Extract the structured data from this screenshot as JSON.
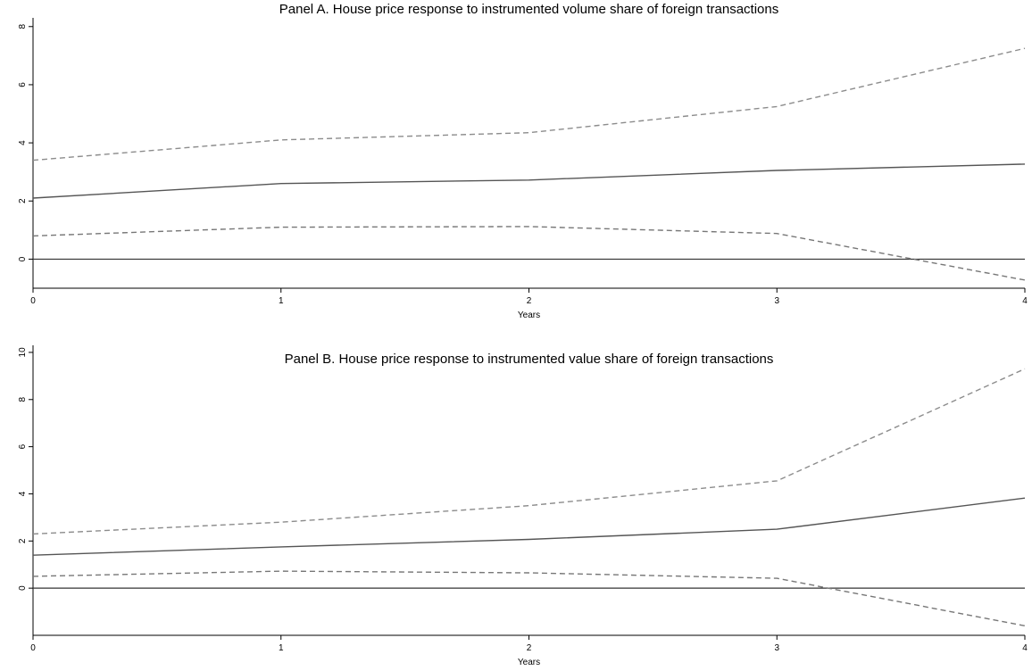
{
  "chart_data": [
    {
      "type": "line",
      "title": "Panel A. House price response to instrumented volume share of foreign transactions",
      "xlabel": "Years",
      "ylabel": "",
      "x": [
        0,
        1,
        2,
        3,
        4
      ],
      "xticks": [
        "0",
        "1",
        "2",
        "3",
        "4"
      ],
      "yticks": [
        "0",
        "2",
        "4",
        "6",
        "8"
      ],
      "xlim": [
        0,
        4
      ],
      "ylim": [
        -1,
        8.3
      ],
      "grid": false,
      "legend": "none",
      "zero_line": 0,
      "series": [
        {
          "role": "upper_band",
          "style": "dashed",
          "color": "#8c8c8c",
          "values": [
            3.4,
            4.1,
            4.35,
            5.25,
            7.25
          ]
        },
        {
          "role": "estimate",
          "style": "solid",
          "color": "#555555",
          "values": [
            2.1,
            2.6,
            2.72,
            3.05,
            3.27
          ]
        },
        {
          "role": "lower_band",
          "style": "dashed",
          "color": "#777777",
          "values": [
            0.8,
            1.1,
            1.12,
            0.88,
            -0.72
          ]
        }
      ]
    },
    {
      "type": "line",
      "title": "Panel B. House price response to instrumented value share of foreign transactions",
      "xlabel": "Years",
      "ylabel": "",
      "x": [
        0,
        1,
        2,
        3,
        4
      ],
      "xticks": [
        "0",
        "1",
        "2",
        "3",
        "4"
      ],
      "yticks": [
        "0",
        "2",
        "4",
        "6",
        "8",
        "10"
      ],
      "xlim": [
        0,
        4
      ],
      "ylim": [
        -2,
        10.3
      ],
      "grid": false,
      "legend": "none",
      "zero_line": 0,
      "series": [
        {
          "role": "upper_band",
          "style": "dashed",
          "color": "#8c8c8c",
          "values": [
            2.3,
            2.8,
            3.5,
            4.55,
            9.3
          ]
        },
        {
          "role": "estimate",
          "style": "solid",
          "color": "#555555",
          "values": [
            1.4,
            1.75,
            2.07,
            2.5,
            3.82
          ]
        },
        {
          "role": "lower_band",
          "style": "dashed",
          "color": "#777777",
          "values": [
            0.5,
            0.72,
            0.65,
            0.42,
            -1.6
          ]
        }
      ]
    }
  ]
}
